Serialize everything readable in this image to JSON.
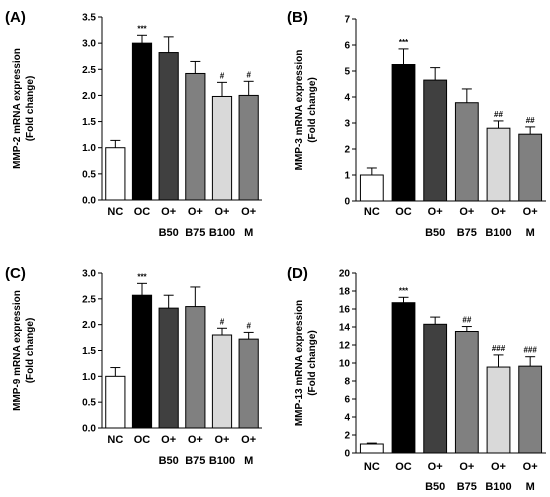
{
  "chart_data": [
    {
      "type": "bar",
      "panel_label": "(A)",
      "ylabel_line1": "MMP-2  mRNA  expression",
      "ylabel_line2": "(Fold  change)",
      "ylim": [
        0,
        3.5
      ],
      "yticks": [
        "0.0",
        "0.5",
        "1.0",
        "1.5",
        "2.0",
        "2.5",
        "3.0",
        "3.5"
      ],
      "categories": [
        [
          "NC",
          ""
        ],
        [
          "OC",
          ""
        ],
        [
          "O+",
          "B50"
        ],
        [
          "O+",
          "B75"
        ],
        [
          "O+",
          "B100"
        ],
        [
          "O+",
          "M"
        ]
      ],
      "values": [
        1.0,
        3.0,
        2.82,
        2.42,
        1.98,
        2.0
      ],
      "errors": [
        0.14,
        0.15,
        0.3,
        0.23,
        0.27,
        0.27
      ],
      "annotations": [
        "",
        "***",
        "",
        "",
        "#",
        "#"
      ],
      "colors": [
        "#ffffff",
        "#000000",
        "#404040",
        "#808080",
        "#d9d9d9",
        "#808080"
      ]
    },
    {
      "type": "bar",
      "panel_label": "(B)",
      "ylabel_line1": "MMP-3  mRNA  expression",
      "ylabel_line2": "(Fold  change)",
      "ylim": [
        0,
        7
      ],
      "yticks": [
        "0",
        "1",
        "2",
        "3",
        "4",
        "5",
        "6",
        "7"
      ],
      "categories": [
        [
          "NC",
          ""
        ],
        [
          "OC",
          ""
        ],
        [
          "O+",
          "B50"
        ],
        [
          "O+",
          "B75"
        ],
        [
          "O+",
          "B100"
        ],
        [
          "O+",
          "M"
        ]
      ],
      "values": [
        1.0,
        5.25,
        4.65,
        3.78,
        2.8,
        2.57
      ],
      "errors": [
        0.27,
        0.6,
        0.48,
        0.53,
        0.28,
        0.28
      ],
      "annotations": [
        "",
        "***",
        "",
        "",
        "##",
        "##"
      ],
      "colors": [
        "#ffffff",
        "#000000",
        "#404040",
        "#808080",
        "#d9d9d9",
        "#808080"
      ]
    },
    {
      "type": "bar",
      "panel_label": "(C)",
      "ylabel_line1": "MMP-9  mRNA  expression",
      "ylabel_line2": "(Fold  change)",
      "ylim": [
        0,
        3.0
      ],
      "yticks": [
        "0.0",
        "0.5",
        "1.0",
        "1.5",
        "2.0",
        "2.5",
        "3.0"
      ],
      "categories": [
        [
          "NC",
          ""
        ],
        [
          "OC",
          ""
        ],
        [
          "O+",
          "B50"
        ],
        [
          "O+",
          "B75"
        ],
        [
          "O+",
          "B100"
        ],
        [
          "O+",
          "M"
        ]
      ],
      "values": [
        1.0,
        2.57,
        2.32,
        2.35,
        1.8,
        1.72
      ],
      "errors": [
        0.17,
        0.23,
        0.25,
        0.38,
        0.13,
        0.13
      ],
      "annotations": [
        "",
        "***",
        "",
        "",
        "#",
        "#"
      ],
      "colors": [
        "#ffffff",
        "#000000",
        "#404040",
        "#808080",
        "#d9d9d9",
        "#808080"
      ]
    },
    {
      "type": "bar",
      "panel_label": "(D)",
      "ylabel_line1": "MMP-13  mRNA  expression",
      "ylabel_line2": "(Fold  change)",
      "ylim": [
        0,
        20
      ],
      "yticks": [
        "0",
        "2",
        "4",
        "6",
        "8",
        "10",
        "12",
        "14",
        "16",
        "18",
        "20"
      ],
      "categories": [
        [
          "NC",
          ""
        ],
        [
          "OC",
          ""
        ],
        [
          "O+",
          "B50"
        ],
        [
          "O+",
          "B75"
        ],
        [
          "O+",
          "B100"
        ],
        [
          "O+",
          "M"
        ]
      ],
      "values": [
        1.0,
        16.7,
        14.3,
        13.5,
        9.55,
        9.65
      ],
      "errors": [
        0.1,
        0.6,
        0.8,
        0.55,
        1.35,
        1.05
      ],
      "annotations": [
        "",
        "***",
        "",
        "##",
        "###",
        "###"
      ],
      "colors": [
        "#ffffff",
        "#000000",
        "#404040",
        "#808080",
        "#d9d9d9",
        "#808080"
      ]
    }
  ]
}
